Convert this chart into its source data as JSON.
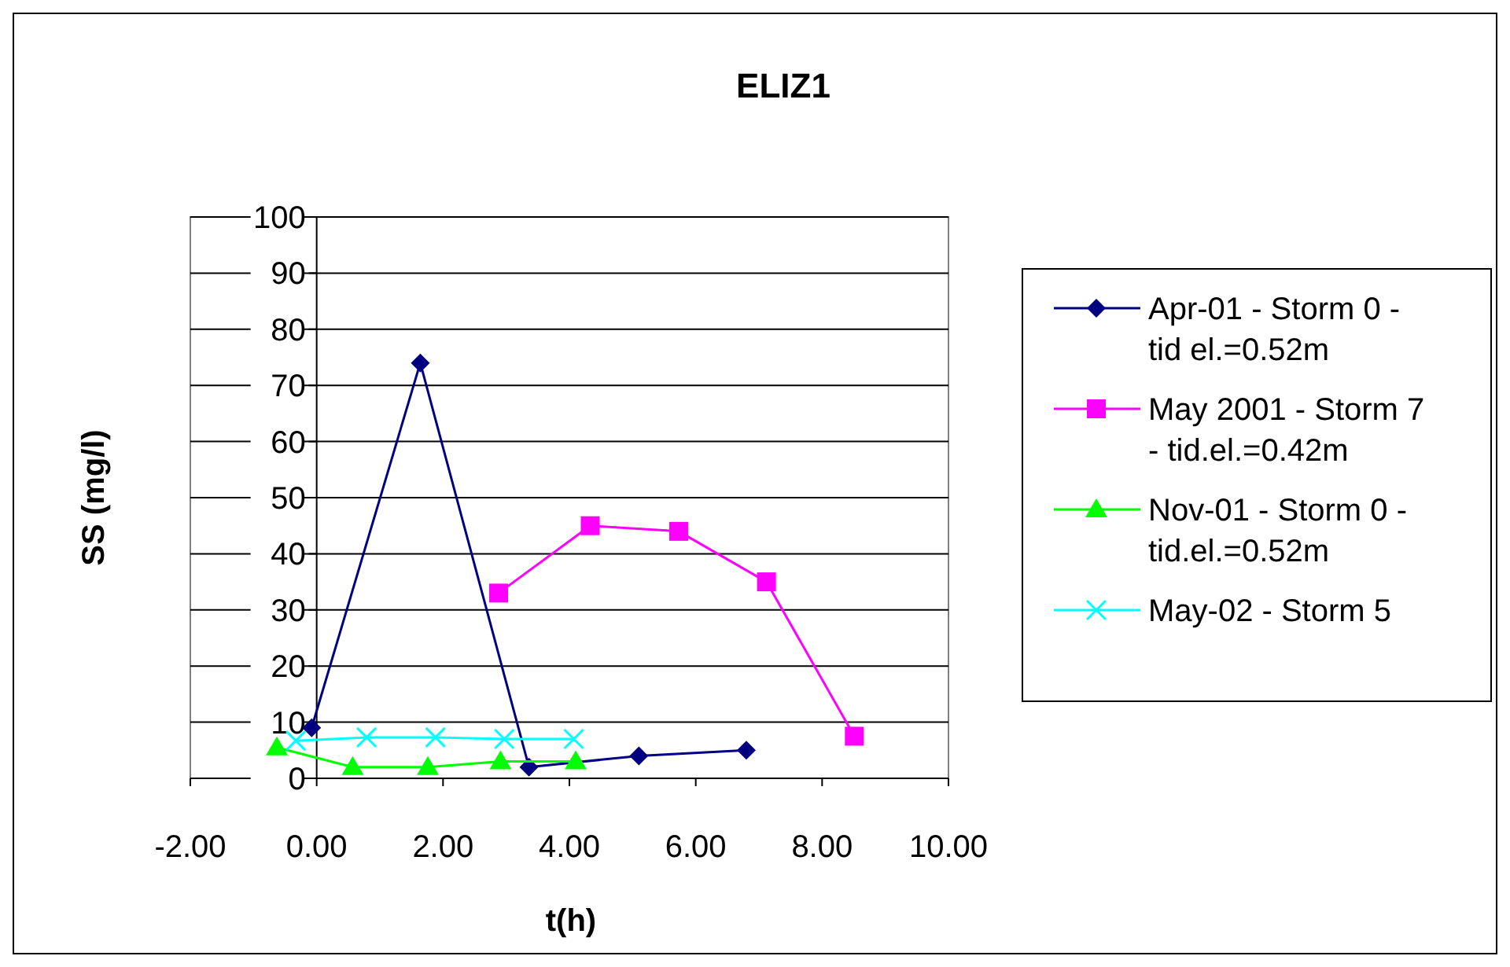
{
  "chart_data": {
    "type": "line",
    "title": "ELIZ1",
    "xlabel": "t(h)",
    "ylabel": "SS (mg/l)",
    "xlim": [
      -2,
      10
    ],
    "xticks": [
      {
        "value": -2,
        "label": "-2.00"
      },
      {
        "value": 0,
        "label": "0.00"
      },
      {
        "value": 2,
        "label": "2.00"
      },
      {
        "value": 4,
        "label": "4.00"
      },
      {
        "value": 6,
        "label": "6.00"
      },
      {
        "value": 8,
        "label": "8.00"
      },
      {
        "value": 10,
        "label": "10.00"
      }
    ],
    "ylim": [
      0,
      100
    ],
    "yticks": [
      0,
      10,
      20,
      30,
      40,
      50,
      60,
      70,
      80,
      90,
      100
    ],
    "grid": "y",
    "legend": "right",
    "series": [
      {
        "name": "Apr-01 - Storm 0 - tid el.=0.52m",
        "color": "#000080",
        "marker": "diamond",
        "x": [
          -0.08,
          1.64,
          3.36,
          5.1,
          6.8
        ],
        "values": [
          9,
          74,
          2,
          4,
          5
        ]
      },
      {
        "name": "May 2001 - Storm 7 - tid.el.=0.42m",
        "color": "#ff00ff",
        "marker": "square",
        "x": [
          2.88,
          4.33,
          5.73,
          7.12,
          8.51
        ],
        "values": [
          33,
          45,
          44,
          35,
          7.5
        ]
      },
      {
        "name": "Nov-01 - Storm 0 - tid.el.=0.52m",
        "color": "#00ff00",
        "marker": "triangle",
        "x": [
          -0.63,
          0.57,
          1.76,
          2.91,
          4.1
        ],
        "values": [
          5.5,
          2,
          2,
          3,
          3
        ]
      },
      {
        "name": "May-02 - Storm 5",
        "color": "#00ffff",
        "marker": "cross",
        "x": [
          -0.33,
          0.79,
          1.88,
          2.97,
          4.07
        ],
        "values": [
          6.7,
          7.3,
          7.3,
          7,
          7
        ]
      }
    ]
  }
}
